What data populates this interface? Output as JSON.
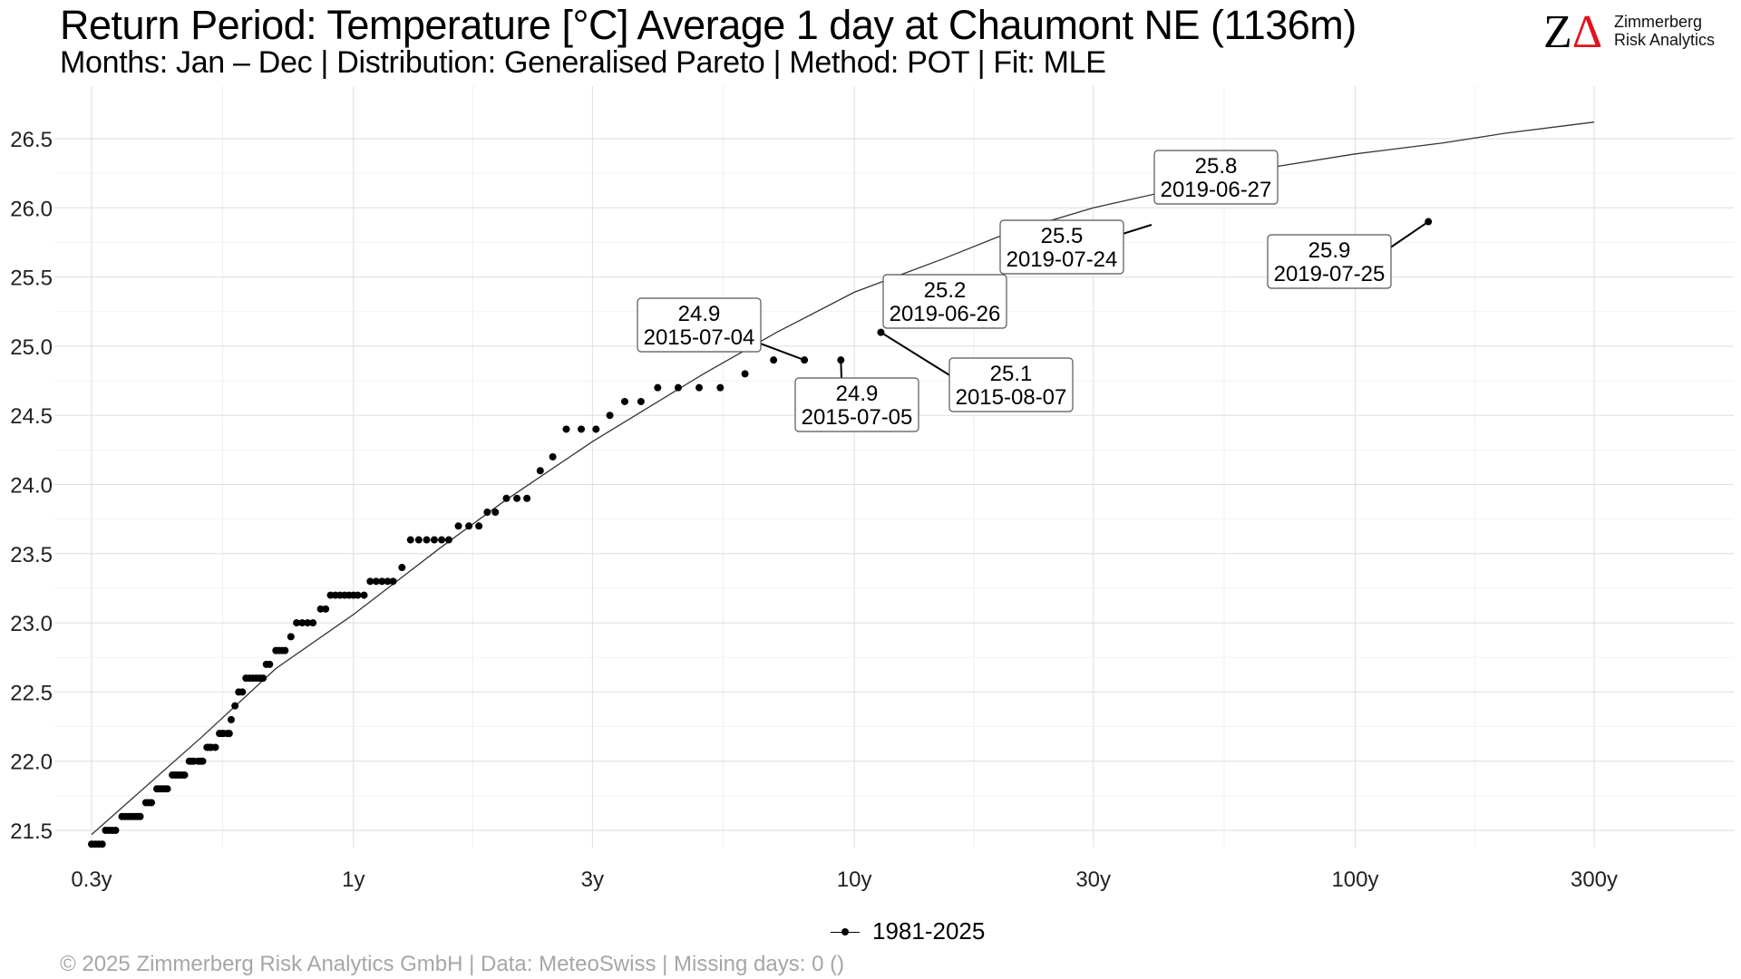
{
  "header": {
    "title": "Return Period: Temperature [°C] Average 1 day at Chaumont  NE (1136m)",
    "subtitle": "Months: Jan – Dec | Distribution: Generalised Pareto | Method: POT | Fit: MLE"
  },
  "logo": {
    "mark_left": "Z",
    "mark_right": "Δ",
    "name_line1": "Zimmerberg",
    "name_line2": "Risk Analytics",
    "accent_color": "#e2131d"
  },
  "footer": {
    "text": "©  2025 Zimmerberg Risk Analytics GmbH | Data: MeteoSwiss | Missing days: 0 ()"
  },
  "legend": {
    "label": "1981-2025"
  },
  "chart_data": {
    "type": "scatter",
    "x_scale": "log",
    "xlim": [
      0.28,
      630
    ],
    "ylim": [
      21.4,
      26.85
    ],
    "x_ticks": [
      {
        "value": 0.3,
        "label": "0.3y"
      },
      {
        "value": 1,
        "label": "1y"
      },
      {
        "value": 3,
        "label": "3y"
      },
      {
        "value": 10,
        "label": "10y"
      },
      {
        "value": 30,
        "label": "30y"
      },
      {
        "value": 100,
        "label": "100y"
      },
      {
        "value": 300,
        "label": "300y"
      }
    ],
    "y_ticks": [
      {
        "value": 21.5,
        "label": "21.5"
      },
      {
        "value": 22.0,
        "label": "22.0"
      },
      {
        "value": 22.5,
        "label": "22.5"
      },
      {
        "value": 23.0,
        "label": "23.0"
      },
      {
        "value": 23.5,
        "label": "23.5"
      },
      {
        "value": 24.0,
        "label": "24.0"
      },
      {
        "value": 24.5,
        "label": "24.5"
      },
      {
        "value": 25.0,
        "label": "25.0"
      },
      {
        "value": 25.5,
        "label": "25.5"
      },
      {
        "value": 26.0,
        "label": "26.0"
      },
      {
        "value": 26.5,
        "label": "26.5"
      }
    ],
    "grid": true,
    "legend_position": "bottom",
    "fit_curve": {
      "name": "Generalised Pareto fit",
      "x": [
        0.3,
        0.5,
        0.7,
        1,
        1.5,
        2,
        3,
        5,
        7,
        10,
        15,
        20,
        30,
        50,
        70,
        100,
        150,
        200,
        300
      ],
      "y": [
        21.47,
        22.18,
        22.67,
        23.06,
        23.55,
        23.88,
        24.31,
        24.8,
        25.1,
        25.39,
        25.63,
        25.81,
        26.0,
        26.18,
        26.3,
        26.39,
        26.47,
        26.54,
        26.62
      ]
    },
    "series": [
      {
        "name": "1981-2025",
        "points": [
          [
            0.3,
            21.4
          ],
          [
            0.305,
            21.4
          ],
          [
            0.31,
            21.4
          ],
          [
            0.315,
            21.4
          ],
          [
            0.32,
            21.5
          ],
          [
            0.325,
            21.5
          ],
          [
            0.33,
            21.5
          ],
          [
            0.335,
            21.5
          ],
          [
            0.345,
            21.6
          ],
          [
            0.35,
            21.6
          ],
          [
            0.355,
            21.6
          ],
          [
            0.36,
            21.6
          ],
          [
            0.365,
            21.6
          ],
          [
            0.37,
            21.6
          ],
          [
            0.375,
            21.6
          ],
          [
            0.385,
            21.7
          ],
          [
            0.39,
            21.7
          ],
          [
            0.395,
            21.7
          ],
          [
            0.405,
            21.8
          ],
          [
            0.41,
            21.8
          ],
          [
            0.415,
            21.8
          ],
          [
            0.42,
            21.8
          ],
          [
            0.425,
            21.8
          ],
          [
            0.435,
            21.9
          ],
          [
            0.44,
            21.9
          ],
          [
            0.445,
            21.9
          ],
          [
            0.45,
            21.9
          ],
          [
            0.455,
            21.9
          ],
          [
            0.46,
            21.9
          ],
          [
            0.47,
            22.0
          ],
          [
            0.475,
            22.0
          ],
          [
            0.48,
            22.0
          ],
          [
            0.49,
            22.0
          ],
          [
            0.495,
            22.0
          ],
          [
            0.5,
            22.0
          ],
          [
            0.51,
            22.1
          ],
          [
            0.515,
            22.1
          ],
          [
            0.52,
            22.1
          ],
          [
            0.53,
            22.1
          ],
          [
            0.54,
            22.2
          ],
          [
            0.545,
            22.2
          ],
          [
            0.55,
            22.2
          ],
          [
            0.56,
            22.2
          ],
          [
            0.565,
            22.2
          ],
          [
            0.57,
            22.3
          ],
          [
            0.58,
            22.4
          ],
          [
            0.59,
            22.5
          ],
          [
            0.6,
            22.5
          ],
          [
            0.61,
            22.6
          ],
          [
            0.62,
            22.6
          ],
          [
            0.63,
            22.6
          ],
          [
            0.64,
            22.6
          ],
          [
            0.65,
            22.6
          ],
          [
            0.66,
            22.6
          ],
          [
            0.67,
            22.7
          ],
          [
            0.68,
            22.7
          ],
          [
            0.7,
            22.8
          ],
          [
            0.71,
            22.8
          ],
          [
            0.72,
            22.8
          ],
          [
            0.73,
            22.8
          ],
          [
            0.75,
            22.9
          ],
          [
            0.77,
            23.0
          ],
          [
            0.79,
            23.0
          ],
          [
            0.81,
            23.0
          ],
          [
            0.83,
            23.0
          ],
          [
            0.86,
            23.1
          ],
          [
            0.88,
            23.1
          ],
          [
            0.9,
            23.2
          ],
          [
            0.92,
            23.2
          ],
          [
            0.94,
            23.2
          ],
          [
            0.96,
            23.2
          ],
          [
            0.98,
            23.2
          ],
          [
            1.0,
            23.2
          ],
          [
            1.02,
            23.2
          ],
          [
            1.05,
            23.2
          ],
          [
            1.08,
            23.3
          ],
          [
            1.11,
            23.3
          ],
          [
            1.14,
            23.3
          ],
          [
            1.17,
            23.3
          ],
          [
            1.2,
            23.3
          ],
          [
            1.25,
            23.4
          ],
          [
            1.3,
            23.6
          ],
          [
            1.35,
            23.6
          ],
          [
            1.4,
            23.6
          ],
          [
            1.45,
            23.6
          ],
          [
            1.5,
            23.6
          ],
          [
            1.55,
            23.6
          ],
          [
            1.62,
            23.7
          ],
          [
            1.7,
            23.7
          ],
          [
            1.78,
            23.7
          ],
          [
            1.85,
            23.8
          ],
          [
            1.92,
            23.8
          ],
          [
            2.02,
            23.9
          ],
          [
            2.12,
            23.9
          ],
          [
            2.22,
            23.9
          ],
          [
            2.36,
            24.1
          ],
          [
            2.5,
            24.2
          ],
          [
            2.66,
            24.4
          ],
          [
            2.85,
            24.4
          ],
          [
            3.05,
            24.4
          ],
          [
            3.25,
            24.5
          ],
          [
            3.48,
            24.6
          ],
          [
            3.75,
            24.6
          ],
          [
            4.05,
            24.7
          ],
          [
            4.45,
            24.7
          ],
          [
            4.9,
            24.7
          ],
          [
            5.4,
            24.7
          ],
          [
            6.05,
            24.8
          ],
          [
            6.9,
            24.9
          ],
          [
            7.95,
            24.9,
            "2015-07-04"
          ],
          [
            9.4,
            24.9,
            "2015-07-05"
          ],
          [
            11.3,
            25.1,
            "2015-08-07"
          ],
          [
            140,
            25.9,
            "2019-07-25"
          ]
        ]
      }
    ],
    "annotations": [
      {
        "value": "24.9",
        "date": "2015-07-04"
      },
      {
        "value": "24.9",
        "date": "2015-07-05"
      },
      {
        "value": "25.1",
        "date": "2015-08-07"
      },
      {
        "value": "25.2",
        "date": "2019-06-26"
      },
      {
        "value": "25.5",
        "date": "2019-07-24"
      },
      {
        "value": "25.8",
        "date": "2019-06-27"
      },
      {
        "value": "25.9",
        "date": "2019-07-25"
      }
    ]
  }
}
